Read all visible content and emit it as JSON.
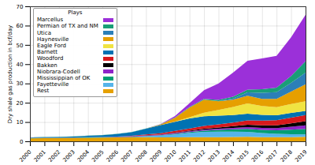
{
  "chart_data": {
    "type": "area",
    "stacked": true,
    "grid": true,
    "legend": "upper left",
    "legend_title": "Plays",
    "y_label": "Dry shale gas production in bcf/day",
    "x": [
      2000,
      2001,
      2002,
      2003,
      2004,
      2005,
      2006,
      2007,
      2008,
      2009,
      2010,
      2011,
      2012,
      2013,
      2014,
      2015,
      2016,
      2017,
      2018,
      2019
    ],
    "xlim": [
      2000,
      2019
    ],
    "xticks": [
      2000,
      2001,
      2002,
      2003,
      2004,
      2005,
      2006,
      2007,
      2008,
      2009,
      2010,
      2011,
      2012,
      2013,
      2014,
      2015,
      2016,
      2017,
      2018,
      2019
    ],
    "ylim": [
      0,
      70
    ],
    "yticks": [
      0,
      10,
      20,
      30,
      40,
      50,
      60,
      70
    ],
    "series": [
      {
        "name": "Marcellus",
        "color": "#9b30d9",
        "values": [
          0,
          0,
          0,
          0,
          0,
          0,
          0,
          0,
          0,
          0.1,
          0.7,
          2.0,
          4.5,
          8.5,
          12.5,
          15.0,
          16.0,
          16.5,
          20.0,
          24.0
        ]
      },
      {
        "name": "Permian of TX and NM",
        "color": "#1a9e77",
        "values": [
          0.05,
          0.05,
          0.05,
          0.05,
          0.05,
          0.05,
          0.1,
          0.1,
          0.1,
          0.1,
          0.2,
          0.3,
          0.4,
          0.6,
          0.9,
          1.4,
          1.8,
          2.3,
          3.6,
          6.0
        ]
      },
      {
        "name": "Utica",
        "color": "#2c7fb8",
        "values": [
          0,
          0,
          0,
          0,
          0,
          0,
          0,
          0,
          0,
          0,
          0,
          0,
          0,
          0.1,
          0.6,
          1.8,
          3.2,
          3.5,
          4.5,
          6.0
        ]
      },
      {
        "name": "Haynesville",
        "color": "#e69f00",
        "values": [
          0,
          0,
          0,
          0,
          0,
          0,
          0,
          0,
          0,
          0.3,
          2.0,
          5.0,
          6.8,
          4.5,
          3.8,
          4.0,
          3.7,
          4.3,
          6.5,
          8.8
        ]
      },
      {
        "name": "Eagle Ford",
        "color": "#f0e442",
        "values": [
          0,
          0,
          0,
          0,
          0,
          0,
          0,
          0,
          0,
          0,
          0.1,
          0.6,
          1.8,
          3.0,
          4.2,
          5.3,
          4.6,
          4.2,
          4.6,
          5.0
        ]
      },
      {
        "name": "Barnett",
        "color": "#0072b2",
        "values": [
          0.2,
          0.3,
          0.4,
          0.5,
          0.7,
          0.9,
          1.3,
          1.8,
          3.0,
          4.2,
          4.7,
          5.2,
          5.0,
          4.5,
          3.9,
          3.5,
          3.0,
          2.6,
          2.4,
          2.2
        ]
      },
      {
        "name": "Woodford",
        "color": "#d7191c",
        "values": [
          0,
          0,
          0,
          0,
          0,
          0,
          0.05,
          0.2,
          0.4,
          0.6,
          0.9,
          1.2,
          1.5,
          1.6,
          1.8,
          2.2,
          2.4,
          2.6,
          3.0,
          3.2
        ]
      },
      {
        "name": "Bakken",
        "color": "#000000",
        "values": [
          0,
          0,
          0,
          0,
          0,
          0,
          0,
          0,
          0.05,
          0.1,
          0.2,
          0.3,
          0.5,
          0.7,
          0.9,
          1.2,
          1.3,
          1.4,
          1.7,
          2.1
        ]
      },
      {
        "name": "Niobrara-Codell",
        "color": "#8e24c9",
        "values": [
          0.1,
          0.1,
          0.1,
          0.1,
          0.2,
          0.2,
          0.2,
          0.3,
          0.3,
          0.3,
          0.4,
          0.4,
          0.5,
          0.6,
          0.8,
          1.0,
          1.1,
          1.2,
          1.6,
          1.9
        ]
      },
      {
        "name": "Mississippian of OK",
        "color": "#009e73",
        "values": [
          0.2,
          0.2,
          0.2,
          0.2,
          0.2,
          0.2,
          0.2,
          0.2,
          0.2,
          0.2,
          0.3,
          0.4,
          0.6,
          0.9,
          1.2,
          1.5,
          1.6,
          1.8,
          2.3,
          2.8
        ]
      },
      {
        "name": "Fayetteville",
        "color": "#56b4e9",
        "values": [
          0,
          0,
          0,
          0,
          0,
          0,
          0.05,
          0.2,
          0.5,
          1.0,
          1.6,
          2.3,
          2.7,
          2.8,
          2.7,
          2.5,
          2.1,
          1.8,
          1.5,
          1.2
        ]
      },
      {
        "name": "Rest",
        "color": "#e6a100",
        "values": [
          1.5,
          1.6,
          1.6,
          1.7,
          1.8,
          1.9,
          2.0,
          2.0,
          2.1,
          2.0,
          2.0,
          2.1,
          2.2,
          2.2,
          2.3,
          2.4,
          2.2,
          2.1,
          2.2,
          2.4
        ]
      }
    ]
  }
}
